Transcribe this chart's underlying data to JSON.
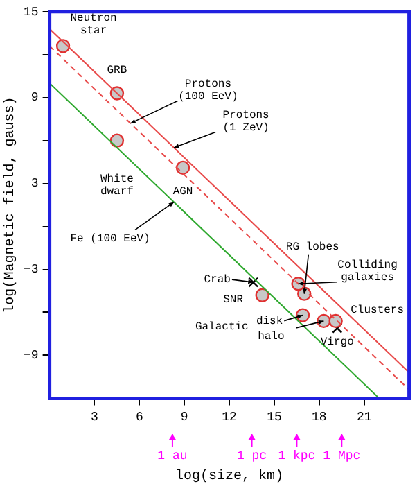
{
  "chart_data": {
    "type": "line",
    "xlabel": "log(size, km)",
    "ylabel": "log(Magnetic field, gauss)",
    "xlim": [
      0,
      24
    ],
    "xticks": [
      3,
      6,
      9,
      12,
      15,
      18,
      21
    ],
    "ylim": [
      -12,
      15
    ],
    "yticks": [
      {
        "value": -9,
        "label": "−9"
      },
      {
        "value": -6,
        "label": null
      },
      {
        "value": -3,
        "label": "−3"
      },
      {
        "value": 0,
        "label": null
      },
      3,
      {
        "value": 6,
        "label": null
      },
      9,
      {
        "value": 12,
        "label": null
      },
      15
    ],
    "grid": false,
    "legend": false,
    "series": [
      {
        "color": "#e84a4a",
        "line_style": "solid",
        "marker": "none",
        "x": [
          0,
          24
        ],
        "values": [
          13.8,
          -10.2
        ]
      },
      {
        "color": "#e84a4a",
        "line_style": "dashed",
        "marker": "none",
        "x": [
          0,
          24
        ],
        "values": [
          12.6,
          -11.4
        ]
      },
      {
        "color": "#2ea82e",
        "line_style": "solid",
        "marker": "none",
        "x": [
          0,
          22
        ],
        "values": [
          10,
          -12
        ]
      },
      {
        "type": "scatter",
        "color": "#c8c8c8",
        "marker": "circle",
        "x": [
          0.9,
          4.5,
          4.5,
          8.9,
          14.2,
          17.0,
          16.6,
          16.9,
          18.3,
          19.1
        ],
        "values": [
          12.6,
          9.3,
          6.0,
          4.1,
          -4.8,
          -4.7,
          -4.0,
          -6.2,
          -6.6,
          -6.6
        ]
      },
      {
        "type": "scatter",
        "color": "#000000",
        "marker": "cross",
        "x": [
          13.6,
          19.2
        ],
        "values": [
          -3.9,
          -7.1
        ]
      }
    ],
    "ref_lines": [
      {
        "axis": "x",
        "value": 8.2,
        "label": "1 au"
      },
      {
        "axis": "x",
        "value": 13.5,
        "label": "1 pc"
      },
      {
        "axis": "x",
        "value": 16.5,
        "label": "1 kpc"
      },
      {
        "axis": "x",
        "value": 19.5,
        "label": "1 Mpc"
      }
    ],
    "annotations": [
      {
        "text": "Neutron\nstar",
        "x": 0.9,
        "y": 12.6
      },
      {
        "text": "GRB",
        "x": 4.5,
        "y": 9.3
      },
      {
        "text": "White\ndwarf",
        "x": 4.5,
        "y": 6.0
      },
      {
        "text": "AGN",
        "x": 8.9,
        "y": 4.1
      },
      {
        "text": "Protons\n(100 EeV)",
        "x": 5.4,
        "y": 7.2
      },
      {
        "text": "Protons\n(1 ZeV)",
        "x": 8.3,
        "y": 5.5
      },
      {
        "text": "Fe (100 EeV)",
        "x": 8.3,
        "y": 1.7
      },
      {
        "text": "RG lobes",
        "x": 17.0,
        "y": -4.7
      },
      {
        "text": "Colliding\ngalaxies",
        "x": 16.6,
        "y": -4.0
      },
      {
        "text": "Crab",
        "x": 13.6,
        "y": -3.9
      },
      {
        "text": "SNR",
        "x": 14.2,
        "y": -4.8
      },
      "Galactic",
      {
        "text": "disk",
        "x": 16.9,
        "y": -6.2
      },
      {
        "text": "halo",
        "x": 18.3,
        "y": -6.6
      },
      {
        "text": "Clusters",
        "x": 19.1,
        "y": -6.6
      },
      {
        "text": "Virgo",
        "x": 19.2,
        "y": -7.1
      }
    ]
  }
}
